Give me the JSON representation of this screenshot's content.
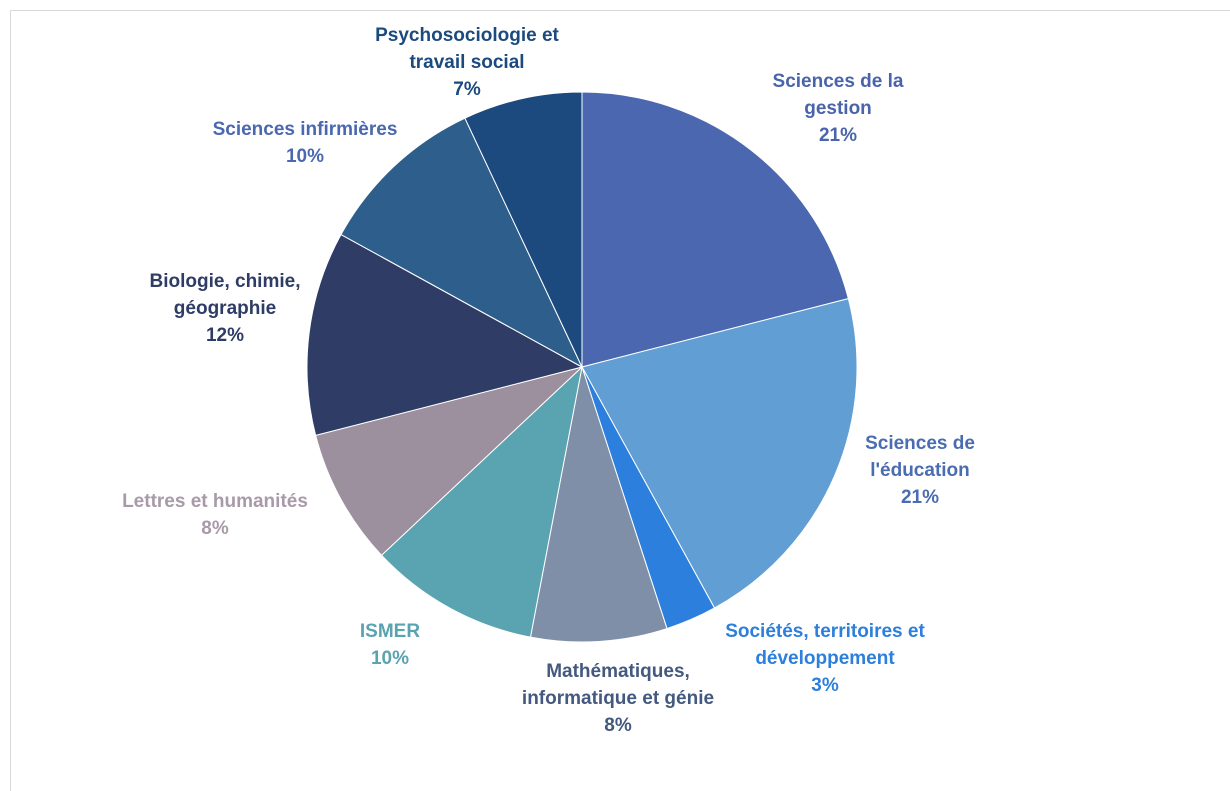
{
  "chart_data": {
    "type": "pie",
    "categories": [
      "Sciences de la gestion",
      "Sciences de l'éducation",
      "Sociétés, territoires et développement",
      "Mathématiques, informatique et génie",
      "ISMER",
      "Lettres et humanités",
      "Biologie, chimie, géographie",
      "Sciences infirmières",
      "Psychosociologie et travail social"
    ],
    "values": [
      21,
      21,
      3,
      8,
      10,
      8,
      12,
      10,
      7
    ],
    "value_labels": [
      "21%",
      "21%",
      "3%",
      "8%",
      "10%",
      "8%",
      "12%",
      "10%",
      "7%"
    ],
    "colors": [
      "#4a67b0",
      "#609ed3",
      "#2c7fdc",
      "#7f8fa8",
      "#5aa3b0",
      "#9c8f9e",
      "#2e3c66",
      "#2e5f8c",
      "#1c4a7e"
    ],
    "label_colors": [
      "#4a64ab",
      "#4a6cb2",
      "#2c7fdc",
      "#44597f",
      "#5aa3b0",
      "#a89aa9",
      "#2e3c66",
      "#4a67b0",
      "#1c4a7e"
    ]
  }
}
